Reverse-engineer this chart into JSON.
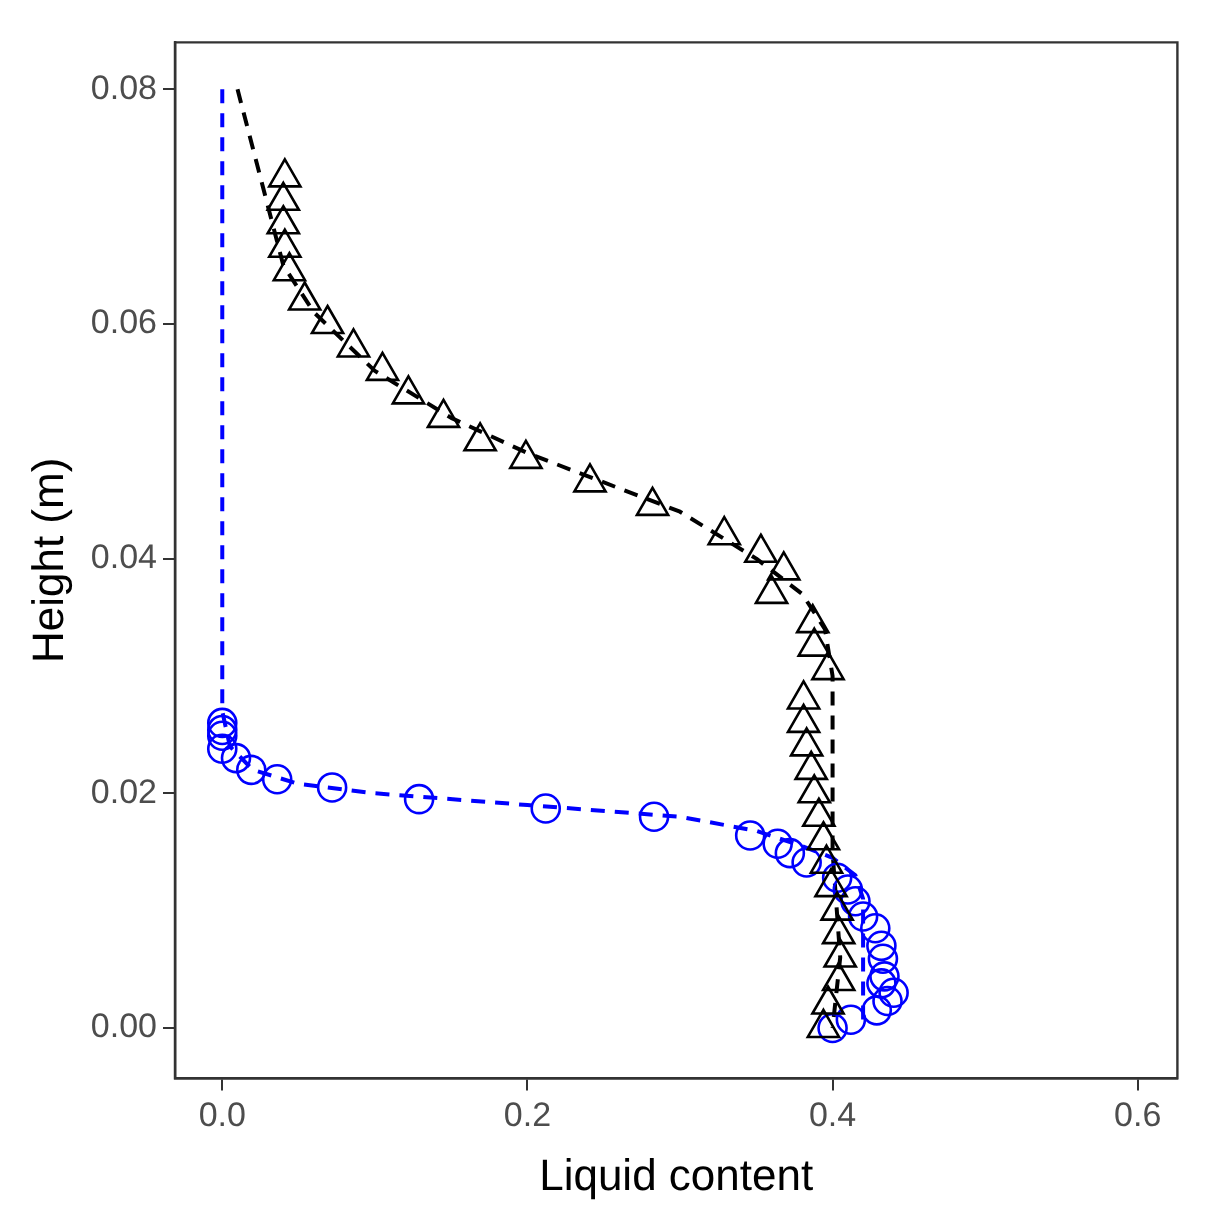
{
  "chart_data": {
    "type": "scatter",
    "xlabel": "Liquid content",
    "ylabel": "Height (m)",
    "legend": false,
    "xlim": [
      -0.031,
      0.626
    ],
    "ylim": [
      -0.0043,
      0.084
    ],
    "xticks": [
      {
        "value": 0,
        "label": "0.0"
      },
      {
        "value": 0.2,
        "label": "0.2"
      },
      {
        "value": 0.4,
        "label": "0.4"
      },
      {
        "value": 0.6,
        "label": "0.6"
      }
    ],
    "yticks": [
      {
        "value": 0,
        "label": "0.00"
      },
      {
        "value": 0.02,
        "label": "0.02"
      },
      {
        "value": 0.04,
        "label": "0.04"
      },
      {
        "value": 0.06,
        "label": "0.06"
      },
      {
        "value": 0.08,
        "label": "0.08"
      }
    ],
    "series": [
      {
        "type": "line",
        "color": "#0000ff",
        "marker": "none",
        "line_style": "dashed",
        "x": [
          0,
          0,
          0.005,
          0.02,
          0.05,
          0.1,
          0.2,
          0.3,
          0.35,
          0.38,
          0.4,
          0.415,
          0.42,
          0.42
        ],
        "values": [
          0.08,
          0.027,
          0.024,
          0.022,
          0.0208,
          0.02,
          0.019,
          0.018,
          0.0168,
          0.0155,
          0.0145,
          0.013,
          0.011,
          0
        ]
      },
      {
        "type": "line",
        "color": "#000000",
        "marker": "none",
        "line_style": "dashed",
        "x": [
          0.01,
          0.02,
          0.03,
          0.04,
          0.06,
          0.1,
          0.15,
          0.2,
          0.3,
          0.35,
          0.38,
          0.395,
          0.4,
          0.4,
          0.405,
          0.4
        ],
        "values": [
          0.08,
          0.075,
          0.07,
          0.065,
          0.061,
          0.056,
          0.052,
          0.049,
          0.044,
          0.04,
          0.037,
          0.034,
          0.03,
          0.015,
          0.006,
          0
        ]
      },
      {
        "type": "scatter",
        "color": "#000000",
        "marker": "triangle",
        "x": [
          0.041,
          0.04,
          0.04,
          0.041,
          0.044,
          0.054,
          0.069,
          0.086,
          0.105,
          0.122,
          0.145,
          0.169,
          0.199,
          0.241,
          0.282,
          0.329,
          0.353,
          0.368,
          0.36,
          0.387,
          0.388,
          0.397,
          0.381,
          0.381,
          0.383,
          0.386,
          0.388,
          0.391,
          0.394,
          0.396,
          0.399,
          0.403,
          0.404,
          0.405,
          0.404,
          0.397,
          0.394
        ],
        "values": [
          0.0725,
          0.0705,
          0.0685,
          0.0665,
          0.0645,
          0.062,
          0.06,
          0.058,
          0.056,
          0.054,
          0.052,
          0.05,
          0.0485,
          0.0465,
          0.0445,
          0.042,
          0.0405,
          0.039,
          0.037,
          0.0345,
          0.0325,
          0.0305,
          0.028,
          0.026,
          0.024,
          0.022,
          0.02,
          0.018,
          0.016,
          0.014,
          0.012,
          0.01,
          0.008,
          0.006,
          0.004,
          0.002,
          0
        ]
      },
      {
        "type": "scatter",
        "color": "#0000ff",
        "marker": "circle",
        "x": [
          0,
          0,
          0,
          0,
          0.009,
          0.019,
          0.036,
          0.072,
          0.129,
          0.212,
          0.283,
          0.346,
          0.364,
          0.372,
          0.383,
          0.403,
          0.41,
          0.415,
          0.42,
          0.428,
          0.432,
          0.433,
          0.434,
          0.432,
          0.44,
          0.436,
          0.429,
          0.412,
          0.4
        ],
        "values": [
          0.026,
          0.0254,
          0.0249,
          0.0238,
          0.023,
          0.022,
          0.0212,
          0.0205,
          0.0195,
          0.0187,
          0.018,
          0.0164,
          0.0157,
          0.0149,
          0.0141,
          0.0128,
          0.0118,
          0.0108,
          0.0095,
          0.0085,
          0.007,
          0.0059,
          0.0044,
          0.0038,
          0.003,
          0.0023,
          0.0015,
          0.0007,
          0
        ]
      }
    ]
  }
}
